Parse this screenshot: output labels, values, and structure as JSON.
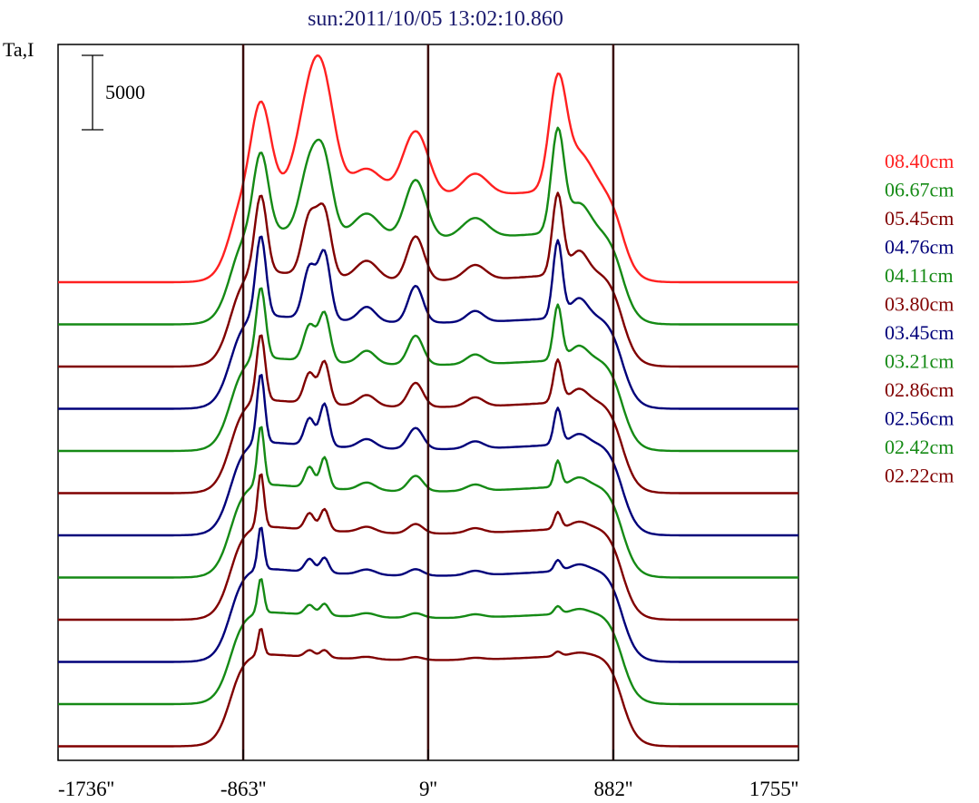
{
  "chart_data": {
    "type": "line",
    "title": "sun:2011/10/05 13:02:10.860",
    "ylabel": "Ta,I",
    "scale_bar_label": "5000",
    "x_tick_labels": [
      "-1736''",
      "-863''",
      "9''",
      "882''",
      "1755''"
    ],
    "x_ticks": [
      -1736,
      -863,
      9,
      882,
      1755
    ],
    "xlim": [
      -1736,
      1755
    ],
    "vertical_lines": [
      -863,
      9,
      882
    ],
    "grid": false,
    "legend_position": "right",
    "colors": {
      "red": "#ff2020",
      "green": "#158a15",
      "darkred": "#800000",
      "navy": "#00007a",
      "frame": "#000000",
      "marker_lines": "#3a0a0a",
      "title": "#1a1a6e"
    },
    "series": [
      {
        "name": "08.40cm",
        "color": "#ff2020",
        "baseline": 0,
        "peak_scale": 1.0,
        "limb_brightening": 0.15,
        "peaks": [
          [
            -780,
            1.0,
            45
          ],
          [
            -550,
            0.95,
            60
          ],
          [
            -480,
            0.95,
            55
          ],
          [
            -280,
            0.3,
            70
          ],
          [
            -50,
            0.75,
            60
          ],
          [
            230,
            0.25,
            60
          ],
          [
            620,
            1.25,
            40
          ],
          [
            720,
            0.4,
            60
          ]
        ]
      },
      {
        "name": "06.67cm",
        "color": "#158a15",
        "baseline": 0,
        "peak_scale": 0.9,
        "limb_brightening": 0.15,
        "peaks": [
          [
            -780,
            1.0,
            35
          ],
          [
            -550,
            0.85,
            45
          ],
          [
            -480,
            0.85,
            40
          ],
          [
            -280,
            0.3,
            60
          ],
          [
            -50,
            0.75,
            50
          ],
          [
            230,
            0.25,
            60
          ],
          [
            620,
            1.3,
            30
          ],
          [
            720,
            0.35,
            50
          ]
        ]
      },
      {
        "name": "05.45cm",
        "color": "#800000",
        "baseline": 0,
        "peak_scale": 0.85,
        "limb_brightening": 0.15,
        "peaks": [
          [
            -780,
            1.05,
            28
          ],
          [
            -550,
            0.8,
            35
          ],
          [
            -480,
            0.85,
            32
          ],
          [
            -280,
            0.25,
            50
          ],
          [
            -50,
            0.6,
            40
          ],
          [
            230,
            0.2,
            50
          ],
          [
            620,
            1.1,
            25
          ],
          [
            720,
            0.3,
            40
          ]
        ]
      },
      {
        "name": "04.76cm",
        "color": "#00007a",
        "baseline": 0,
        "peak_scale": 0.85,
        "limb_brightening": 0.12,
        "peaks": [
          [
            -780,
            1.1,
            24
          ],
          [
            -550,
            0.7,
            30
          ],
          [
            -480,
            0.9,
            28
          ],
          [
            -280,
            0.2,
            40
          ],
          [
            -50,
            0.5,
            35
          ],
          [
            230,
            0.15,
            40
          ],
          [
            620,
            1.05,
            22
          ],
          [
            720,
            0.25,
            40
          ]
        ]
      },
      {
        "name": "04.11cm",
        "color": "#158a15",
        "baseline": 0,
        "peak_scale": 0.75,
        "limb_brightening": 0.12,
        "peaks": [
          [
            -780,
            1.1,
            22
          ],
          [
            -550,
            0.55,
            28
          ],
          [
            -480,
            0.75,
            26
          ],
          [
            -280,
            0.2,
            40
          ],
          [
            -50,
            0.45,
            35
          ],
          [
            230,
            0.15,
            40
          ],
          [
            620,
            0.85,
            20
          ],
          [
            720,
            0.2,
            40
          ]
        ]
      },
      {
        "name": "03.80cm",
        "color": "#800000",
        "baseline": 0,
        "peak_scale": 0.7,
        "limb_brightening": 0.12,
        "peaks": [
          [
            -780,
            1.1,
            20
          ],
          [
            -550,
            0.5,
            26
          ],
          [
            -480,
            0.7,
            24
          ],
          [
            -280,
            0.18,
            40
          ],
          [
            -50,
            0.4,
            35
          ],
          [
            230,
            0.15,
            40
          ],
          [
            620,
            0.7,
            20
          ],
          [
            720,
            0.2,
            40
          ]
        ]
      },
      {
        "name": "03.45cm",
        "color": "#00007a",
        "baseline": 0,
        "peak_scale": 0.7,
        "limb_brightening": 0.12,
        "peaks": [
          [
            -780,
            1.15,
            18
          ],
          [
            -550,
            0.45,
            24
          ],
          [
            -480,
            0.7,
            22
          ],
          [
            -280,
            0.15,
            40
          ],
          [
            -50,
            0.35,
            35
          ],
          [
            230,
            0.12,
            40
          ],
          [
            620,
            0.6,
            18
          ],
          [
            720,
            0.15,
            40
          ]
        ]
      },
      {
        "name": "03.21cm",
        "color": "#158a15",
        "baseline": 0,
        "peak_scale": 0.6,
        "limb_brightening": 0.12,
        "peaks": [
          [
            -780,
            1.15,
            16
          ],
          [
            -550,
            0.4,
            22
          ],
          [
            -480,
            0.6,
            20
          ],
          [
            -280,
            0.15,
            40
          ],
          [
            -50,
            0.3,
            35
          ],
          [
            230,
            0.12,
            40
          ],
          [
            620,
            0.5,
            16
          ],
          [
            720,
            0.15,
            40
          ]
        ]
      },
      {
        "name": "02.86cm",
        "color": "#800000",
        "baseline": 0,
        "peak_scale": 0.55,
        "limb_brightening": 0.12,
        "peaks": [
          [
            -780,
            1.15,
            15
          ],
          [
            -550,
            0.35,
            22
          ],
          [
            -480,
            0.45,
            20
          ],
          [
            -280,
            0.12,
            40
          ],
          [
            -50,
            0.2,
            35
          ],
          [
            230,
            0.1,
            40
          ],
          [
            620,
            0.35,
            16
          ],
          [
            720,
            0.12,
            40
          ]
        ]
      },
      {
        "name": "02.56cm",
        "color": "#00007a",
        "baseline": 0,
        "peak_scale": 0.5,
        "limb_brightening": 0.12,
        "peaks": [
          [
            -780,
            1.0,
            14
          ],
          [
            -550,
            0.3,
            22
          ],
          [
            -480,
            0.35,
            20
          ],
          [
            -280,
            0.12,
            40
          ],
          [
            -50,
            0.15,
            35
          ],
          [
            230,
            0.1,
            40
          ],
          [
            620,
            0.25,
            16
          ],
          [
            720,
            0.12,
            40
          ]
        ]
      },
      {
        "name": "02.42cm",
        "color": "#158a15",
        "baseline": 0,
        "peak_scale": 0.45,
        "limb_brightening": 0.1,
        "peaks": [
          [
            -780,
            0.9,
            14
          ],
          [
            -550,
            0.25,
            22
          ],
          [
            -480,
            0.3,
            20
          ],
          [
            -280,
            0.1,
            40
          ],
          [
            -50,
            0.12,
            35
          ],
          [
            230,
            0.08,
            40
          ],
          [
            620,
            0.2,
            16
          ],
          [
            720,
            0.1,
            40
          ]
        ]
      },
      {
        "name": "02.22cm",
        "color": "#800000",
        "baseline": 0,
        "peak_scale": 0.35,
        "limb_brightening": 0.1,
        "peaks": [
          [
            -780,
            0.9,
            13
          ],
          [
            -550,
            0.22,
            22
          ],
          [
            -480,
            0.25,
            20
          ],
          [
            -280,
            0.08,
            40
          ],
          [
            -50,
            0.1,
            35
          ],
          [
            230,
            0.06,
            40
          ],
          [
            620,
            0.15,
            16
          ],
          [
            720,
            0.08,
            40
          ]
        ]
      }
    ]
  }
}
